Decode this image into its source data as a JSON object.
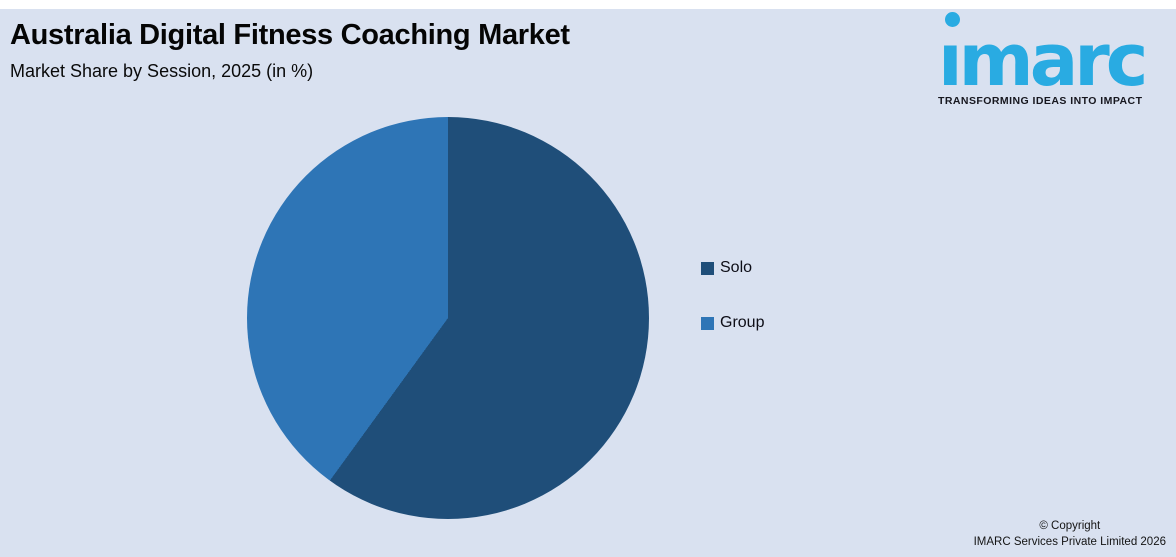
{
  "header": {
    "title": "Australia Digital Fitness Coaching Market",
    "subtitle": "Market Share by Session, 2025 (in %)"
  },
  "logo": {
    "brand": "imarc",
    "tagline": "TRANSFORMING IDEAS INTO IMPACT",
    "brand_color": "#29ABE2"
  },
  "chart_data": {
    "type": "pie",
    "title": "Market Share by Session, 2025 (in %)",
    "categories": [
      "Solo",
      "Group"
    ],
    "values": [
      60,
      40
    ],
    "colors": [
      "#1F4E79",
      "#2E75B6"
    ],
    "start_angle_deg": 0,
    "direction": "clockwise",
    "legend_position": "right",
    "data_labels": "none"
  },
  "footer": {
    "copyright_line1": "© Copyright",
    "copyright_line2": "IMARC Services Private Limited 2026"
  },
  "colors": {
    "background": "#D9E1F0",
    "top_edge": "#FFFFFF",
    "solo_slice": "#1F4E79",
    "group_slice": "#2E75B6",
    "text": "#0a0a0a"
  }
}
